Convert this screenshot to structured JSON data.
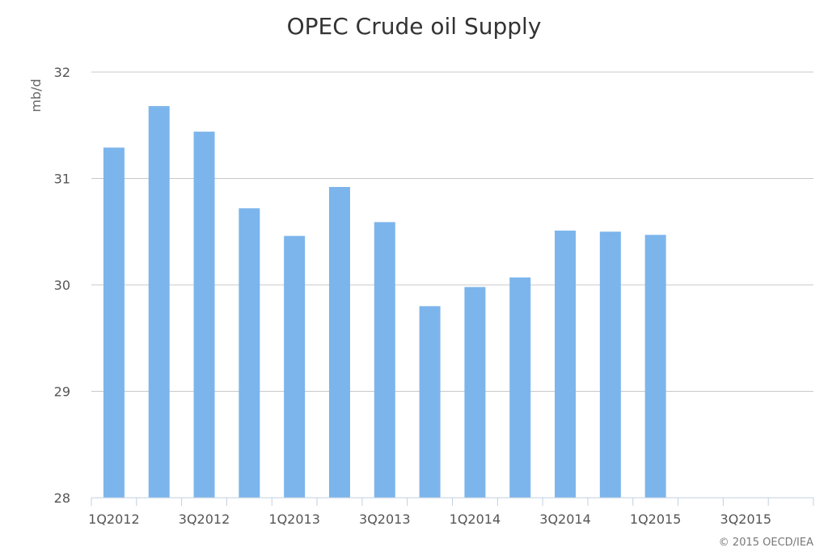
{
  "chart_data": {
    "type": "bar",
    "title": "OPEC Crude oil Supply",
    "ylabel": "mb/d",
    "xlabel": "",
    "ylim": [
      28,
      32
    ],
    "yticks": [
      28,
      29,
      30,
      31,
      32
    ],
    "grid": true,
    "legend": "none",
    "bar_color": "#7cb5ec",
    "grid_color": "#c8c8c8",
    "axis_color": "#c0d0e0",
    "categories": [
      "1Q2012",
      "2Q2012",
      "3Q2012",
      "4Q2012",
      "1Q2013",
      "2Q2013",
      "3Q2013",
      "4Q2013",
      "1Q2014",
      "2Q2014",
      "3Q2014",
      "4Q2014",
      "1Q2015",
      "2Q2015",
      "3Q2015",
      "4Q2015"
    ],
    "x_tick_labels": [
      "1Q2012",
      "3Q2012",
      "1Q2013",
      "3Q2013",
      "1Q2014",
      "3Q2014",
      "1Q2015",
      "3Q2015"
    ],
    "values": [
      31.29,
      31.68,
      31.44,
      30.72,
      30.46,
      30.92,
      30.59,
      29.8,
      29.98,
      30.07,
      30.51,
      30.5,
      30.47,
      null,
      null,
      null
    ]
  },
  "footer": {
    "credit": "© 2015 OECD/IEA"
  }
}
